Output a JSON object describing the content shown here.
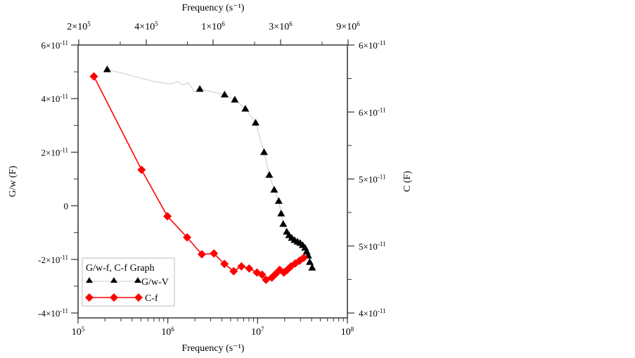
{
  "chart_data": {
    "type": "scatter",
    "title": "",
    "x_axis_bottom": {
      "label": "Frequency (s⁻¹)",
      "scale": "log",
      "range": [
        100000,
        100000000
      ],
      "ticks": [
        {
          "value": 100000,
          "base": "10",
          "exp": "5"
        },
        {
          "value": 1000000,
          "base": "10",
          "exp": "6"
        },
        {
          "value": 10000000,
          "base": "10",
          "exp": "7"
        },
        {
          "value": 100000000,
          "base": "10",
          "exp": "8"
        }
      ]
    },
    "x_axis_top": {
      "label": "Frequency (s⁻¹)",
      "ticks": [
        {
          "base": "2×10",
          "exp": "5"
        },
        {
          "base": "4×10",
          "exp": "5"
        },
        {
          "base": "1×10",
          "exp": "6"
        },
        {
          "base": "3×10",
          "exp": "6"
        },
        {
          "base": "9×10",
          "exp": "6"
        }
      ]
    },
    "y_axis_left": {
      "label": "G/w (F)",
      "range": [
        -4e-11,
        6e-11
      ],
      "ticks": [
        {
          "value": 6e-11,
          "base": "6×10",
          "exp": "-11"
        },
        {
          "value": 4e-11,
          "base": "4×10",
          "exp": "-11"
        },
        {
          "value": 2e-11,
          "base": "2×10",
          "exp": "-11"
        },
        {
          "value": 0,
          "base": "0",
          "exp": ""
        },
        {
          "value": -2e-11,
          "base": "-2×10",
          "exp": "-11"
        },
        {
          "value": -4e-11,
          "base": "-4×10",
          "exp": "-11"
        }
      ]
    },
    "y_axis_right": {
      "label": "C (F)",
      "ticks": [
        {
          "base": "6×10",
          "exp": "-11"
        },
        {
          "base": "6×10",
          "exp": "-11"
        },
        {
          "base": "5×10",
          "exp": "-11"
        },
        {
          "base": "5×10",
          "exp": "-11"
        },
        {
          "base": "4×10",
          "exp": "-11"
        }
      ]
    },
    "legend": {
      "title": "G/w-f, C-f Graph",
      "position": "bottom-left",
      "entries": [
        "G/w-V",
        "C-f"
      ]
    },
    "series": [
      {
        "name": "G/w-V",
        "marker": "triangle",
        "marker_color": "#000000",
        "line_color": "#c8c8c8",
        "points": [
          [
            211000,
            5.09e-11
          ],
          [
            2270000,
            4.36e-11
          ],
          [
            4290000,
            4.15e-11
          ],
          [
            5570000,
            3.96e-11
          ],
          [
            7300000,
            3.62e-11
          ],
          [
            9500000,
            3.1e-11
          ],
          [
            11800000,
            2e-11
          ],
          [
            13500000,
            1.15e-11
          ],
          [
            15300000,
            6e-12
          ],
          [
            17200000,
            1.8e-12
          ],
          [
            18300000,
            -2.9e-12
          ],
          [
            19300000,
            -6.8e-12
          ],
          [
            21100000,
            -9.7e-12
          ],
          [
            22400000,
            -1.1e-11
          ],
          [
            24000000,
            -1.2e-11
          ],
          [
            25800000,
            -1.28e-11
          ],
          [
            27800000,
            -1.34e-11
          ],
          [
            29800000,
            -1.39e-11
          ],
          [
            31800000,
            -1.47e-11
          ],
          [
            33800000,
            -1.57e-11
          ],
          [
            35200000,
            -1.71e-11
          ],
          [
            36600000,
            -1.86e-11
          ],
          [
            38100000,
            -2.1e-11
          ],
          [
            40500000,
            -2.31e-11
          ]
        ],
        "line_wiggles": [
          [
            700000,
            4.64e-11
          ],
          [
            880000,
            4.59e-11
          ],
          [
            1070000,
            4.54e-11
          ],
          [
            1280000,
            4.64e-11
          ],
          [
            1480000,
            4.51e-11
          ],
          [
            1700000,
            4.59e-11
          ],
          [
            1970000,
            4.25e-11
          ]
        ]
      },
      {
        "name": "C-f",
        "marker": "diamond",
        "marker_color": "#ff0000",
        "line_color": "#ff0000",
        "points": [
          [
            150000,
            4.83e-11
          ],
          [
            510000,
            1.34e-11
          ],
          [
            990000,
            -3.9e-12
          ],
          [
            1640000,
            -1.18e-11
          ],
          [
            2390000,
            -1.81e-11
          ],
          [
            3260000,
            -1.78e-11
          ],
          [
            4270000,
            -2.17e-11
          ],
          [
            5410000,
            -2.44e-11
          ],
          [
            6600000,
            -2.26e-11
          ],
          [
            8060000,
            -2.34e-11
          ],
          [
            9830000,
            -2.49e-11
          ],
          [
            11200000,
            -2.57e-11
          ],
          [
            12400000,
            -2.76e-11
          ],
          [
            14400000,
            -2.68e-11
          ],
          [
            15800000,
            -2.55e-11
          ],
          [
            17600000,
            -2.39e-11
          ],
          [
            19600000,
            -2.49e-11
          ],
          [
            21100000,
            -2.41e-11
          ],
          [
            23500000,
            -2.26e-11
          ],
          [
            26300000,
            -2.15e-11
          ],
          [
            29300000,
            -2.05e-11
          ],
          [
            32600000,
            -1.94e-11
          ]
        ]
      }
    ]
  }
}
